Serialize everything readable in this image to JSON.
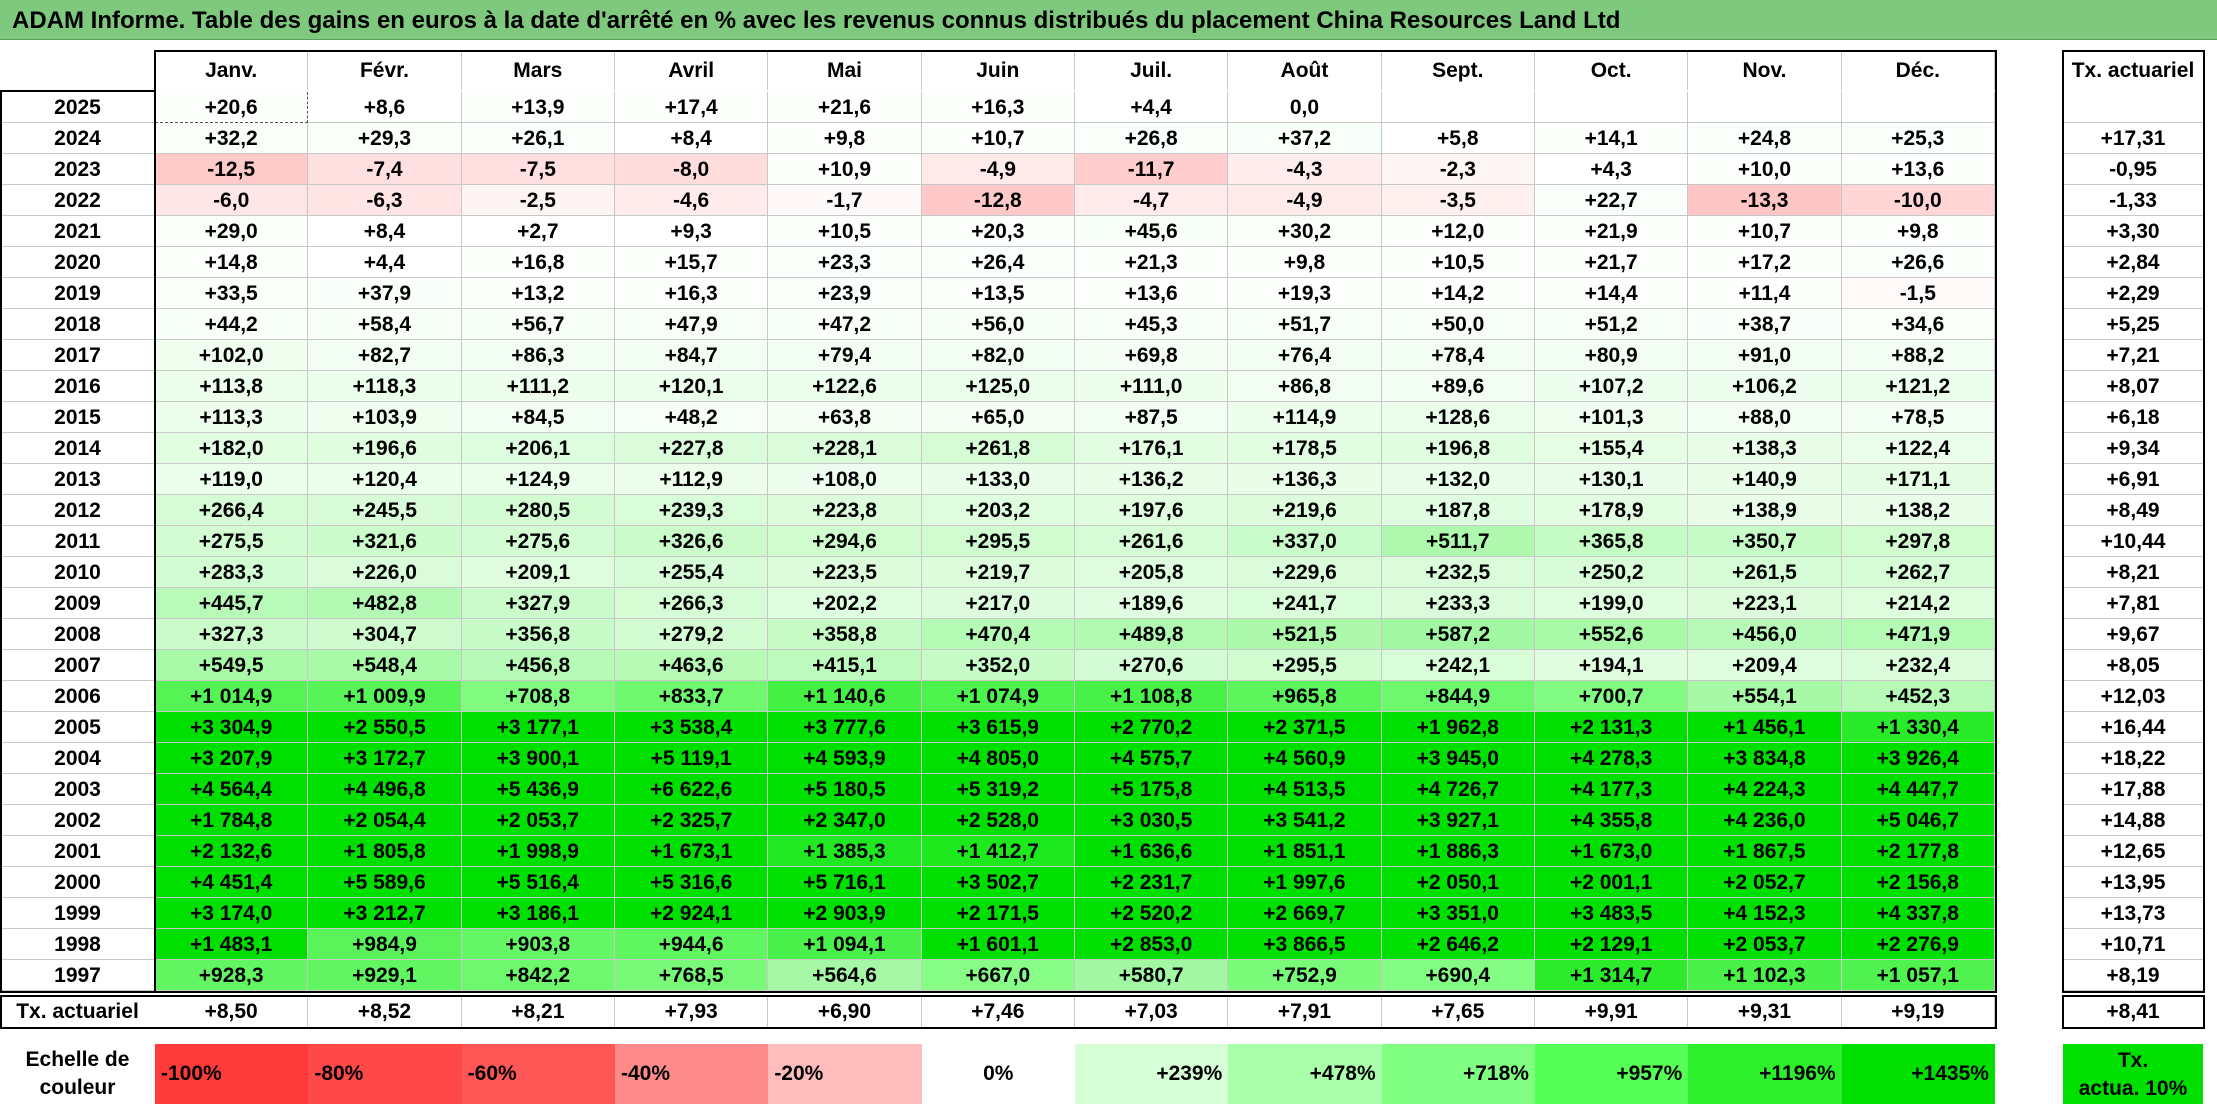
{
  "title": "ADAM Informe. Table des gains en euros à la date d'arrêté en % avec les revenus connus distribués du placement China Resources Land Ltd",
  "months": [
    "Janv.",
    "Févr.",
    "Mars",
    "Avril",
    "Mai",
    "Juin",
    "Juil.",
    "Août",
    "Sept.",
    "Oct.",
    "Nov.",
    "Déc."
  ],
  "tx_header": "Tx. actuariel",
  "rows": [
    {
      "year": "2025",
      "values": [
        "+20,6",
        "+8,6",
        "+13,9",
        "+17,4",
        "+21,6",
        "+16,3",
        "+4,4",
        "0,0",
        "",
        "",
        "",
        ""
      ],
      "tx": ""
    },
    {
      "year": "2024",
      "values": [
        "+32,2",
        "+29,3",
        "+26,1",
        "+8,4",
        "+9,8",
        "+10,7",
        "+26,8",
        "+37,2",
        "+5,8",
        "+14,1",
        "+24,8",
        "+25,3"
      ],
      "tx": "+17,31"
    },
    {
      "year": "2023",
      "values": [
        "-12,5",
        "-7,4",
        "-7,5",
        "-8,0",
        "+10,9",
        "-4,9",
        "-11,7",
        "-4,3",
        "-2,3",
        "+4,3",
        "+10,0",
        "+13,6"
      ],
      "tx": "-0,95"
    },
    {
      "year": "2022",
      "values": [
        "-6,0",
        "-6,3",
        "-2,5",
        "-4,6",
        "-1,7",
        "-12,8",
        "-4,7",
        "-4,9",
        "-3,5",
        "+22,7",
        "-13,3",
        "-10,0"
      ],
      "tx": "-1,33"
    },
    {
      "year": "2021",
      "values": [
        "+29,0",
        "+8,4",
        "+2,7",
        "+9,3",
        "+10,5",
        "+20,3",
        "+45,6",
        "+30,2",
        "+12,0",
        "+21,9",
        "+10,7",
        "+9,8"
      ],
      "tx": "+3,30"
    },
    {
      "year": "2020",
      "values": [
        "+14,8",
        "+4,4",
        "+16,8",
        "+15,7",
        "+23,3",
        "+26,4",
        "+21,3",
        "+9,8",
        "+10,5",
        "+21,7",
        "+17,2",
        "+26,6"
      ],
      "tx": "+2,84"
    },
    {
      "year": "2019",
      "values": [
        "+33,5",
        "+37,9",
        "+13,2",
        "+16,3",
        "+23,9",
        "+13,5",
        "+13,6",
        "+19,3",
        "+14,2",
        "+14,4",
        "+11,4",
        "-1,5"
      ],
      "tx": "+2,29"
    },
    {
      "year": "2018",
      "values": [
        "+44,2",
        "+58,4",
        "+56,7",
        "+47,9",
        "+47,2",
        "+56,0",
        "+45,3",
        "+51,7",
        "+50,0",
        "+51,2",
        "+38,7",
        "+34,6"
      ],
      "tx": "+5,25"
    },
    {
      "year": "2017",
      "values": [
        "+102,0",
        "+82,7",
        "+86,3",
        "+84,7",
        "+79,4",
        "+82,0",
        "+69,8",
        "+76,4",
        "+78,4",
        "+80,9",
        "+91,0",
        "+88,2"
      ],
      "tx": "+7,21"
    },
    {
      "year": "2016",
      "values": [
        "+113,8",
        "+118,3",
        "+111,2",
        "+120,1",
        "+122,6",
        "+125,0",
        "+111,0",
        "+86,8",
        "+89,6",
        "+107,2",
        "+106,2",
        "+121,2"
      ],
      "tx": "+8,07"
    },
    {
      "year": "2015",
      "values": [
        "+113,3",
        "+103,9",
        "+84,5",
        "+48,2",
        "+63,8",
        "+65,0",
        "+87,5",
        "+114,9",
        "+128,6",
        "+101,3",
        "+88,0",
        "+78,5"
      ],
      "tx": "+6,18"
    },
    {
      "year": "2014",
      "values": [
        "+182,0",
        "+196,6",
        "+206,1",
        "+227,8",
        "+228,1",
        "+261,8",
        "+176,1",
        "+178,5",
        "+196,8",
        "+155,4",
        "+138,3",
        "+122,4"
      ],
      "tx": "+9,34"
    },
    {
      "year": "2013",
      "values": [
        "+119,0",
        "+120,4",
        "+124,9",
        "+112,9",
        "+108,0",
        "+133,0",
        "+136,2",
        "+136,3",
        "+132,0",
        "+130,1",
        "+140,9",
        "+171,1"
      ],
      "tx": "+6,91"
    },
    {
      "year": "2012",
      "values": [
        "+266,4",
        "+245,5",
        "+280,5",
        "+239,3",
        "+223,8",
        "+203,2",
        "+197,6",
        "+219,6",
        "+187,8",
        "+178,9",
        "+138,9",
        "+138,2"
      ],
      "tx": "+8,49"
    },
    {
      "year": "2011",
      "values": [
        "+275,5",
        "+321,6",
        "+275,6",
        "+326,6",
        "+294,6",
        "+295,5",
        "+261,6",
        "+337,0",
        "+511,7",
        "+365,8",
        "+350,7",
        "+297,8"
      ],
      "tx": "+10,44"
    },
    {
      "year": "2010",
      "values": [
        "+283,3",
        "+226,0",
        "+209,1",
        "+255,4",
        "+223,5",
        "+219,7",
        "+205,8",
        "+229,6",
        "+232,5",
        "+250,2",
        "+261,5",
        "+262,7"
      ],
      "tx": "+8,21"
    },
    {
      "year": "2009",
      "values": [
        "+445,7",
        "+482,8",
        "+327,9",
        "+266,3",
        "+202,2",
        "+217,0",
        "+189,6",
        "+241,7",
        "+233,3",
        "+199,0",
        "+223,1",
        "+214,2"
      ],
      "tx": "+7,81"
    },
    {
      "year": "2008",
      "values": [
        "+327,3",
        "+304,7",
        "+356,8",
        "+279,2",
        "+358,8",
        "+470,4",
        "+489,8",
        "+521,5",
        "+587,2",
        "+552,6",
        "+456,0",
        "+471,9"
      ],
      "tx": "+9,67"
    },
    {
      "year": "2007",
      "values": [
        "+549,5",
        "+548,4",
        "+456,8",
        "+463,6",
        "+415,1",
        "+352,0",
        "+270,6",
        "+295,5",
        "+242,1",
        "+194,1",
        "+209,4",
        "+232,4"
      ],
      "tx": "+8,05"
    },
    {
      "year": "2006",
      "values": [
        "+1 014,9",
        "+1 009,9",
        "+708,8",
        "+833,7",
        "+1 140,6",
        "+1 074,9",
        "+1 108,8",
        "+965,8",
        "+844,9",
        "+700,7",
        "+554,1",
        "+452,3"
      ],
      "tx": "+12,03"
    },
    {
      "year": "2005",
      "values": [
        "+3 304,9",
        "+2 550,5",
        "+3 177,1",
        "+3 538,4",
        "+3 777,6",
        "+3 615,9",
        "+2 770,2",
        "+2 371,5",
        "+1 962,8",
        "+2 131,3",
        "+1 456,1",
        "+1 330,4"
      ],
      "tx": "+16,44"
    },
    {
      "year": "2004",
      "values": [
        "+3 207,9",
        "+3 172,7",
        "+3 900,1",
        "+5 119,1",
        "+4 593,9",
        "+4 805,0",
        "+4 575,7",
        "+4 560,9",
        "+3 945,0",
        "+4 278,3",
        "+3 834,8",
        "+3 926,4"
      ],
      "tx": "+18,22"
    },
    {
      "year": "2003",
      "values": [
        "+4 564,4",
        "+4 496,8",
        "+5 436,9",
        "+6 622,6",
        "+5 180,5",
        "+5 319,2",
        "+5 175,8",
        "+4 513,5",
        "+4 726,7",
        "+4 177,3",
        "+4 224,3",
        "+4 447,7"
      ],
      "tx": "+17,88"
    },
    {
      "year": "2002",
      "values": [
        "+1 784,8",
        "+2 054,4",
        "+2 053,7",
        "+2 325,7",
        "+2 347,0",
        "+2 528,0",
        "+3 030,5",
        "+3 541,2",
        "+3 927,1",
        "+4 355,8",
        "+4 236,0",
        "+5 046,7"
      ],
      "tx": "+14,88"
    },
    {
      "year": "2001",
      "values": [
        "+2 132,6",
        "+1 805,8",
        "+1 998,9",
        "+1 673,1",
        "+1 385,3",
        "+1 412,7",
        "+1 636,6",
        "+1 851,1",
        "+1 886,3",
        "+1 673,0",
        "+1 867,5",
        "+2 177,8"
      ],
      "tx": "+12,65"
    },
    {
      "year": "2000",
      "values": [
        "+4 451,4",
        "+5 589,6",
        "+5 516,4",
        "+5 316,6",
        "+5 716,1",
        "+3 502,7",
        "+2 231,7",
        "+1 997,6",
        "+2 050,1",
        "+2 001,1",
        "+2 052,7",
        "+2 156,8"
      ],
      "tx": "+13,95"
    },
    {
      "year": "1999",
      "values": [
        "+3 174,0",
        "+3 212,7",
        "+3 186,1",
        "+2 924,1",
        "+2 903,9",
        "+2 171,5",
        "+2 520,2",
        "+2 669,7",
        "+3 351,0",
        "+3 483,5",
        "+4 152,3",
        "+4 337,8"
      ],
      "tx": "+13,73"
    },
    {
      "year": "1998",
      "values": [
        "+1 483,1",
        "+984,9",
        "+903,8",
        "+944,6",
        "+1 094,1",
        "+1 601,1",
        "+2 853,0",
        "+3 866,5",
        "+2 646,2",
        "+2 129,1",
        "+2 053,7",
        "+2 276,9"
      ],
      "tx": "+10,71"
    },
    {
      "year": "1997",
      "values": [
        "+928,3",
        "+929,1",
        "+842,2",
        "+768,5",
        "+564,6",
        "+667,0",
        "+580,7",
        "+752,9",
        "+690,4",
        "+1 314,7",
        "+1 102,3",
        "+1 057,1"
      ],
      "tx": "+8,19"
    }
  ],
  "summary": {
    "label": "Tx. actuariel",
    "values": [
      "+8,50",
      "+8,52",
      "+8,21",
      "+7,93",
      "+6,90",
      "+7,46",
      "+7,03",
      "+7,91",
      "+7,65",
      "+9,91",
      "+9,31",
      "+9,19"
    ],
    "tx": "+8,41"
  },
  "scale": {
    "label_line1": "Echelle de",
    "label_line2": "couleur",
    "items": [
      {
        "label": "-100%",
        "color": "#ff3a3a"
      },
      {
        "label": "-80%",
        "color": "#ff4848"
      },
      {
        "label": "-60%",
        "color": "#ff5656"
      },
      {
        "label": "-40%",
        "color": "#ff8a8a"
      },
      {
        "label": "-20%",
        "color": "#ffbcbc"
      },
      {
        "label": "0%",
        "color": "#ffffff"
      },
      {
        "label": "+239%",
        "color": "#d6ffd6"
      },
      {
        "label": "+478%",
        "color": "#aaffaa"
      },
      {
        "label": "+718%",
        "color": "#80ff80"
      },
      {
        "label": "+957%",
        "color": "#55ff55"
      },
      {
        "label": "+1196%",
        "color": "#2bf02b"
      },
      {
        "label": "+1435%",
        "color": "#00e000"
      }
    ],
    "tx_line1": "Tx.",
    "tx_line2": "actua. 10%"
  }
}
